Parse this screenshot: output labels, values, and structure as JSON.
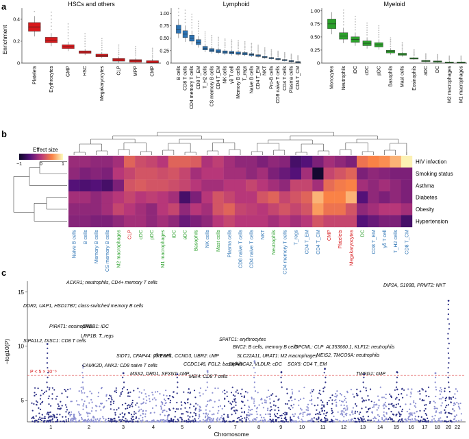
{
  "panel_letters": {
    "a": "a",
    "b": "b",
    "c": "c"
  },
  "panel_a": {
    "y_label": "Enrichment",
    "groups": [
      {
        "title": "HSCs and others",
        "color": "#d7191c",
        "y_ticks": [
          "0",
          "0.2",
          "0.4"
        ],
        "y_range": [
          0,
          0.5
        ],
        "labels": [
          "Platelets",
          "Erythrocytes",
          "GMP",
          "HSC",
          "Megakaryocytes",
          "CLP",
          "MPP",
          "CMP"
        ],
        "medians": [
          0.33,
          0.21,
          0.15,
          0.1,
          0.07,
          0.03,
          0.02,
          0.01
        ]
      },
      {
        "title": "Lymphoid",
        "color": "#2c73b4",
        "y_ticks": [
          "0",
          "0.25",
          "0.50",
          "0.75",
          "1.00"
        ],
        "y_range": [
          0,
          1.1
        ],
        "labels": [
          "B cells",
          "CD8 T cells",
          "CD4 memory T cells",
          "CD8 T_EM",
          "T_H2 cells",
          "CS memory B cells",
          "CD4 T_EM",
          "NK cells",
          "γδ T cell",
          "Memory B cells",
          "T_regs",
          "Naive B cells",
          "CD4 T_EM",
          "NKT",
          "Pro-B cells",
          "CD8 naive T cells",
          "CD4 T cells",
          "Plasma cells",
          "CD4 T_CM"
        ],
        "medians": [
          0.68,
          0.58,
          0.5,
          0.42,
          0.3,
          0.26,
          0.24,
          0.22,
          0.21,
          0.2,
          0.19,
          0.17,
          0.15,
          0.12,
          0.1,
          0.08,
          0.06,
          0.04,
          0.02
        ]
      },
      {
        "title": "Myeloid",
        "color": "#2ca02c",
        "y_ticks": [
          "0",
          "0.25",
          "0.50",
          "0.75",
          "1.00"
        ],
        "y_range": [
          0,
          1.05
        ],
        "labels": [
          "Monocytes",
          "Neutrophils",
          "iDC",
          "cDC",
          "pDC",
          "Basophils",
          "Mast cells",
          "Eosinophils",
          "aDC",
          "DC",
          "M2 macrophages",
          "M1 macrophages"
        ],
        "medians": [
          0.75,
          0.52,
          0.45,
          0.38,
          0.35,
          0.22,
          0.17,
          0.09,
          0.04,
          0.03,
          0.01,
          0.01
        ]
      }
    ]
  },
  "panel_b": {
    "legend_title": "Effect size",
    "legend_ticks": [
      "−1",
      "0",
      "1"
    ],
    "traits": [
      "HIV infection",
      "Smoking status",
      "Asthma",
      "Diabetes",
      "Obesity",
      "Hypertension"
    ],
    "cells": [
      {
        "name": "Naive B cells",
        "color": "#2c73b4"
      },
      {
        "name": "B cells",
        "color": "#2c73b4"
      },
      {
        "name": "Memory B cells",
        "color": "#2c73b4"
      },
      {
        "name": "CS memory B cells",
        "color": "#2c73b4"
      },
      {
        "name": "M2 macrophages",
        "color": "#2ca02c"
      },
      {
        "name": "CLP",
        "color": "#d7191c"
      },
      {
        "name": "cDC",
        "color": "#2ca02c"
      },
      {
        "name": "pDC",
        "color": "#2ca02c"
      },
      {
        "name": "M1 macrophages",
        "color": "#2ca02c"
      },
      {
        "name": "iDC",
        "color": "#2ca02c"
      },
      {
        "name": "aDC",
        "color": "#2ca02c"
      },
      {
        "name": "Basophils",
        "color": "#2ca02c"
      },
      {
        "name": "NK cells",
        "color": "#2c73b4"
      },
      {
        "name": "Mast cells",
        "color": "#2ca02c"
      },
      {
        "name": "Plasma cells",
        "color": "#2c73b4"
      },
      {
        "name": "CD8 naive T cells",
        "color": "#2c73b4"
      },
      {
        "name": "CD4 naive T cells",
        "color": "#2c73b4"
      },
      {
        "name": "NKT",
        "color": "#2c73b4"
      },
      {
        "name": "Neutrophils",
        "color": "#2ca02c"
      },
      {
        "name": "CD4 memory T cells",
        "color": "#2c73b4"
      },
      {
        "name": "T_regs",
        "color": "#2c73b4"
      },
      {
        "name": "CD4 T_EM",
        "color": "#2c73b4"
      },
      {
        "name": "CD4 T_CM",
        "color": "#2c73b4"
      },
      {
        "name": "CMP",
        "color": "#d7191c"
      },
      {
        "name": "Platelets",
        "color": "#d7191c"
      },
      {
        "name": "Megakaryocytes",
        "color": "#d7191c"
      },
      {
        "name": "DC",
        "color": "#2ca02c"
      },
      {
        "name": "CD8 T_EM",
        "color": "#2c73b4"
      },
      {
        "name": "γδ T cell",
        "color": "#2c73b4"
      },
      {
        "name": "T_H2 cells",
        "color": "#2c73b4"
      },
      {
        "name": "CD8 T_CM",
        "color": "#2c73b4"
      }
    ],
    "matrix": [
      [
        -0.15,
        -0.15,
        -0.2,
        -0.2,
        -0.1,
        0.3,
        0.15,
        0.1,
        0.0,
        0.3,
        0.3,
        0.25,
        -0.05,
        0.05,
        -0.1,
        -0.2,
        -0.2,
        -0.3,
        -0.2,
        -0.25,
        -0.6,
        -0.5,
        -0.3,
        -0.1,
        -0.2,
        -0.3,
        0.4,
        0.5,
        0.55,
        0.7,
        0.95
      ],
      [
        -0.2,
        -0.3,
        -0.25,
        -0.3,
        0.0,
        0.1,
        0.2,
        0.2,
        0.15,
        0.2,
        0.1,
        -0.1,
        0.0,
        0.0,
        -0.1,
        -0.1,
        -0.2,
        -0.1,
        -0.3,
        -0.4,
        -0.5,
        -0.1,
        -0.95,
        0.1,
        0.2,
        0.3,
        -0.3,
        -0.2,
        -0.25,
        -0.3,
        -0.3
      ],
      [
        -0.5,
        -0.55,
        -0.5,
        -0.6,
        -0.3,
        0.2,
        0.25,
        0.2,
        0.2,
        0.15,
        0.1,
        0.0,
        -0.1,
        -0.1,
        0.0,
        0.0,
        0.1,
        0.0,
        -0.1,
        -0.2,
        0.1,
        0.1,
        -0.1,
        0.35,
        0.45,
        0.5,
        -0.1,
        -0.2,
        -0.1,
        -0.2,
        -0.3
      ],
      [
        -0.1,
        -0.1,
        -0.2,
        -0.1,
        0.0,
        0.1,
        0.0,
        0.05,
        0.0,
        -0.1,
        -0.6,
        -0.3,
        0.0,
        0.2,
        0.1,
        0.0,
        0.0,
        0.2,
        0.3,
        0.1,
        0.2,
        0.3,
        0.7,
        0.5,
        0.5,
        0.7,
        -0.5,
        -0.2,
        -0.3,
        -0.2,
        -0.3
      ],
      [
        -0.2,
        -0.2,
        -0.2,
        -0.1,
        0.1,
        0.0,
        -0.1,
        -0.2,
        0.0,
        0.1,
        -0.2,
        0.0,
        -0.1,
        0.2,
        0.3,
        0.1,
        0.05,
        0.0,
        0.1,
        0.2,
        0.1,
        0.2,
        0.6,
        0.4,
        0.4,
        0.2,
        -0.2,
        -0.1,
        0.0,
        0.0,
        -0.1
      ],
      [
        -0.25,
        -0.25,
        -0.3,
        -0.3,
        -0.2,
        -0.1,
        -0.1,
        -0.2,
        -0.1,
        -0.2,
        -0.4,
        -0.3,
        -0.2,
        0.0,
        0.1,
        0.0,
        0.0,
        0.0,
        -0.1,
        0.0,
        -0.1,
        0.0,
        0.2,
        0.1,
        0.1,
        0.1,
        -0.5,
        -0.4,
        -0.3,
        -0.3,
        -0.6
      ]
    ]
  },
  "panel_c": {
    "y_label": "−log10(P)",
    "x_label": "Chromosome",
    "y_ticks": [
      "5",
      "10",
      "15"
    ],
    "y_range": [
      3,
      16
    ],
    "threshold_label": "P < 5 × 10⁻⁸",
    "threshold": 7.3,
    "chromosomes": [
      "1",
      "2",
      "3",
      "4",
      "5",
      "6",
      "7",
      "8",
      "9",
      "10",
      "11",
      "12",
      "13",
      "14",
      "15",
      "16",
      "17",
      "18",
      "20",
      "22"
    ],
    "annotations": [
      "ACKR1; neutrophils, CD4+ memory T cells",
      "DDR2, UAP1, HSD17B7; class-switched memory B cells",
      "PIRAT1: eosinophils",
      "CREB1: iDC",
      "LRP1B: T_regs",
      "SIPA1L2, DISC1: CD8 T cells",
      "SIDT1, CFAP44: γδ T cell",
      "TRERF1, CCND3, UBR2: cMP",
      "SPATC1: erythrocytes",
      "BNC2: B cells, memory B cells",
      "OPCML: CLP",
      "AL353660.1, KLF12: neutrophils",
      "DIP2A, S100B, PRMT2: NKT",
      "CCDC146, FGL2: basophils",
      "SLC22A11, URAT1: M2 macrophages",
      "CAMK2D, ANK2: CD8 naive T cells",
      "MSX2, DRD1, SFXN1: cMP",
      "SMARCA2, VLDLR: cDC",
      "SOX5: CD4 T_EM",
      "MEIS2, TMCO5A: neutrophils",
      "MEI4: CD8 T cells",
      "TWSG1: cMP"
    ]
  }
}
